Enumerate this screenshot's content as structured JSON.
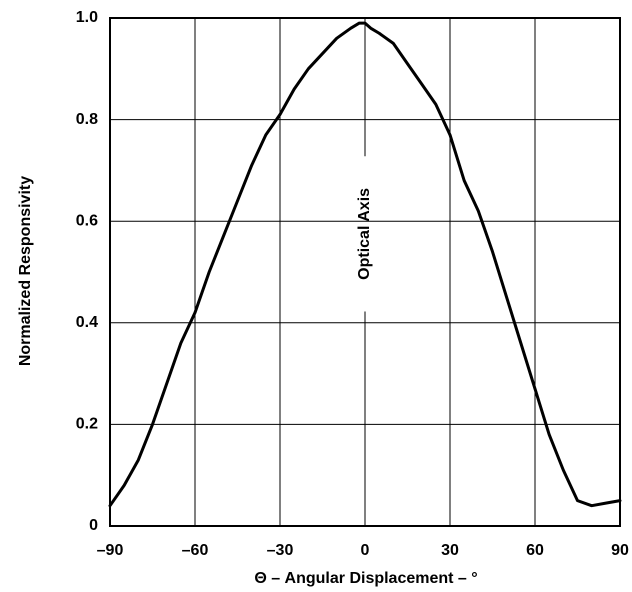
{
  "chart_data": {
    "type": "line",
    "title": "",
    "xlabel": "Θ – Angular Displacement – °",
    "ylabel": "Normalized Responsivity",
    "xlim": [
      -90,
      90
    ],
    "ylim": [
      0,
      1.0
    ],
    "x_ticks": [
      -90,
      -60,
      -30,
      0,
      30,
      60,
      90
    ],
    "x_tick_labels": [
      "–90",
      "–60",
      "–30",
      "0",
      "30",
      "60",
      "90"
    ],
    "y_ticks": [
      0,
      0.2,
      0.4,
      0.6,
      0.8,
      1.0
    ],
    "y_tick_labels": [
      "0",
      "0.2",
      "0.4",
      "0.6",
      "0.8",
      "1.0"
    ],
    "grid": true,
    "line_color": "#000000",
    "annotations": [
      {
        "text": "Optical Axis",
        "x": 0,
        "y_from": 0.43,
        "y_to": 0.72,
        "orientation": "vertical"
      }
    ],
    "series": [
      {
        "x": [
          -90,
          -85,
          -80,
          -75,
          -70,
          -65,
          -60,
          -55,
          -50,
          -45,
          -40,
          -35,
          -30,
          -25,
          -20,
          -15,
          -10,
          -5,
          -2,
          0,
          2,
          5,
          10,
          15,
          20,
          25,
          30,
          35,
          40,
          45,
          50,
          55,
          60,
          65,
          70,
          75,
          80,
          85,
          90
        ],
        "values": [
          0.04,
          0.08,
          0.13,
          0.2,
          0.28,
          0.36,
          0.42,
          0.5,
          0.57,
          0.64,
          0.71,
          0.77,
          0.81,
          0.86,
          0.9,
          0.93,
          0.96,
          0.98,
          0.99,
          0.99,
          0.98,
          0.97,
          0.95,
          0.91,
          0.87,
          0.83,
          0.77,
          0.68,
          0.62,
          0.54,
          0.45,
          0.36,
          0.27,
          0.18,
          0.11,
          0.05,
          0.04,
          0.045,
          0.05
        ]
      }
    ]
  }
}
